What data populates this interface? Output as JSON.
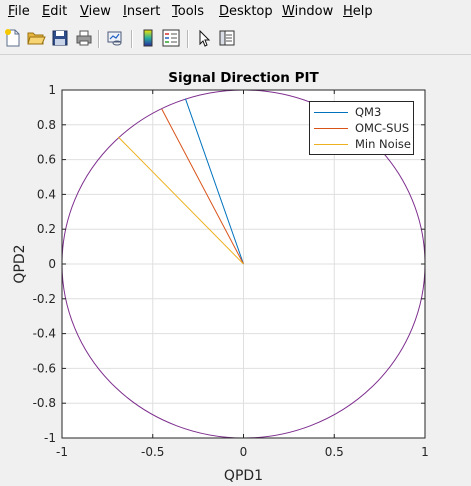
{
  "menubar": {
    "items": [
      {
        "pre": "",
        "mn": "F",
        "post": "ile"
      },
      {
        "pre": "",
        "mn": "E",
        "post": "dit"
      },
      {
        "pre": "",
        "mn": "V",
        "post": "iew"
      },
      {
        "pre": "",
        "mn": "I",
        "post": "nsert"
      },
      {
        "pre": "",
        "mn": "T",
        "post": "ools"
      },
      {
        "pre": "",
        "mn": "D",
        "post": "esktop"
      },
      {
        "pre": "",
        "mn": "W",
        "post": "indow"
      },
      {
        "pre": "",
        "mn": "H",
        "post": "elp"
      }
    ]
  },
  "toolbar": {
    "icons": [
      "new-figure-icon",
      "open-file-icon",
      "save-icon",
      "print-icon",
      "link-plot-icon",
      "colorbar-icon",
      "legend-icon",
      "edit-plot-icon",
      "property-editor-icon"
    ]
  },
  "chart_data": {
    "type": "line",
    "title": "Signal Direction PIT",
    "xlabel": "QPD1",
    "ylabel": "QPD2",
    "xlim": [
      -1,
      1
    ],
    "ylim": [
      -1,
      1
    ],
    "xticks": [
      "-1",
      "-0.5",
      "0",
      "0.5",
      "1"
    ],
    "yticks": [
      "1",
      "0.8",
      "0.6",
      "0.4",
      "0.2",
      "0",
      "-0.2",
      "-0.4",
      "-0.6",
      "-0.8",
      "-1"
    ],
    "grid": true,
    "legend_position": "top-right",
    "series": [
      {
        "name": "QM3",
        "color": "#0072bd",
        "x": [
          0,
          -0.32
        ],
        "y": [
          0,
          0.95
        ]
      },
      {
        "name": "OMC-SUS",
        "color": "#d95319",
        "x": [
          0,
          -0.45
        ],
        "y": [
          0,
          0.89
        ]
      },
      {
        "name": "Min Noise",
        "color": "#edb120",
        "x": [
          0,
          -0.69
        ],
        "y": [
          0,
          0.73
        ]
      }
    ],
    "unit_circle": {
      "color": "#7e2f8e",
      "radius": 1
    }
  }
}
